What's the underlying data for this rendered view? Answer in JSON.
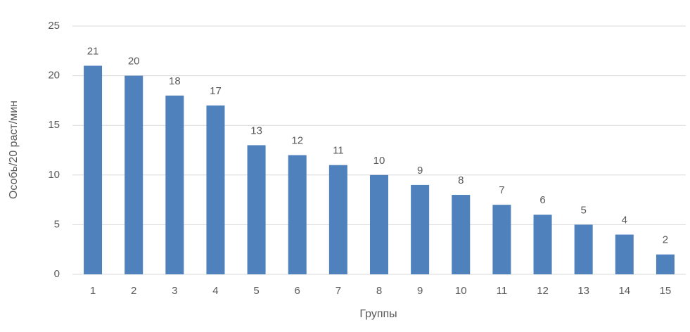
{
  "chart_data": {
    "type": "bar",
    "x_label": "Группы",
    "y_label": "Особь/20 раст/мин",
    "categories": [
      "1",
      "2",
      "3",
      "4",
      "5",
      "6",
      "7",
      "8",
      "9",
      "10",
      "11",
      "12",
      "13",
      "14",
      "15"
    ],
    "values": [
      21,
      20,
      18,
      17,
      13,
      12,
      11,
      10,
      9,
      8,
      7,
      6,
      5,
      4,
      2
    ],
    "color": "#4f81bd",
    "ylim": [
      0,
      25
    ],
    "yticks": [
      0,
      5,
      10,
      15,
      20,
      25
    ],
    "grid": true
  }
}
